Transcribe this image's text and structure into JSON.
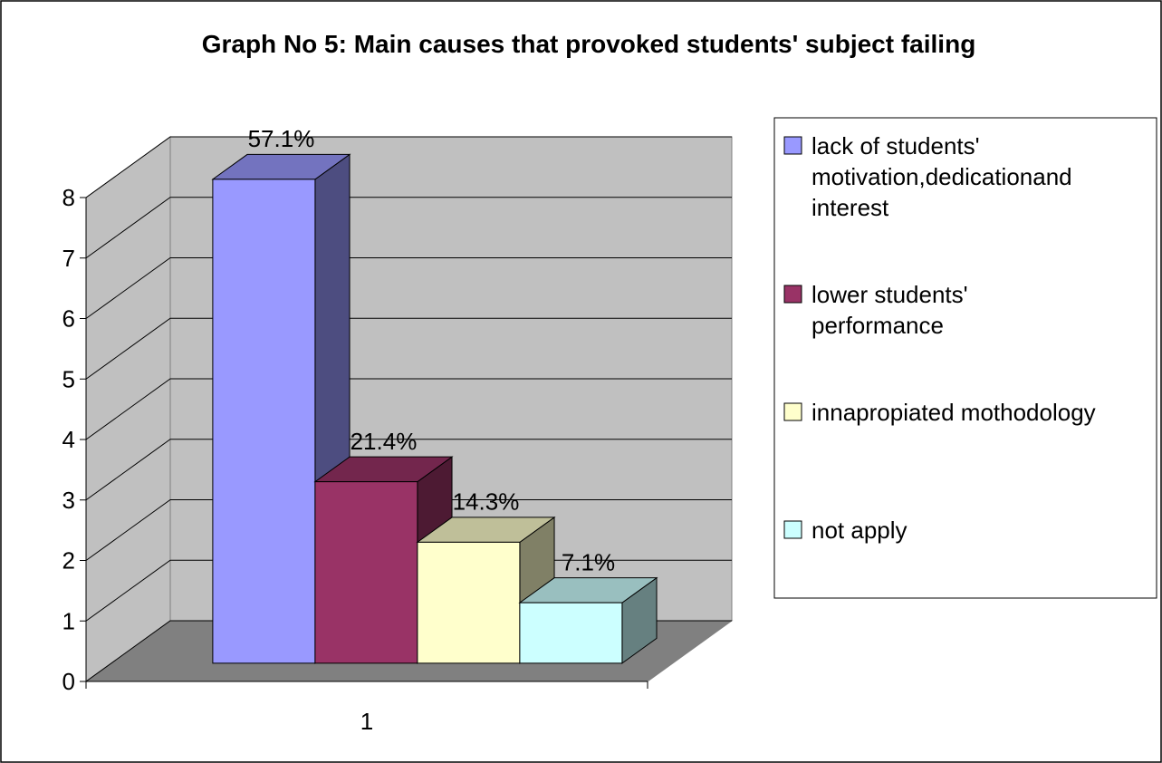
{
  "chart_data": {
    "type": "bar3d",
    "title": "Graph No 5:  Main causes that provoked students' subject failing",
    "categories": [
      "1"
    ],
    "series": [
      {
        "name": "lack of students' motivation,dedicationand interest",
        "color": "#9999ff",
        "values": [
          8
        ],
        "value_labels": [
          "57.1%"
        ]
      },
      {
        "name": "lower students' performance",
        "color": "#993366",
        "values": [
          3
        ],
        "value_labels": [
          "21.4%"
        ]
      },
      {
        "name": "innapropiated mothodology",
        "color": "#ffffcc",
        "values": [
          2
        ],
        "value_labels": [
          "14.3%"
        ]
      },
      {
        "name": "not apply",
        "color": "#ccffff",
        "values": [
          1
        ],
        "value_labels": [
          "7.1%"
        ]
      }
    ],
    "ylim": [
      0,
      8
    ],
    "yticks": [
      0,
      1,
      2,
      3,
      4,
      5,
      6,
      7,
      8
    ],
    "grid": true,
    "legend": "right"
  }
}
